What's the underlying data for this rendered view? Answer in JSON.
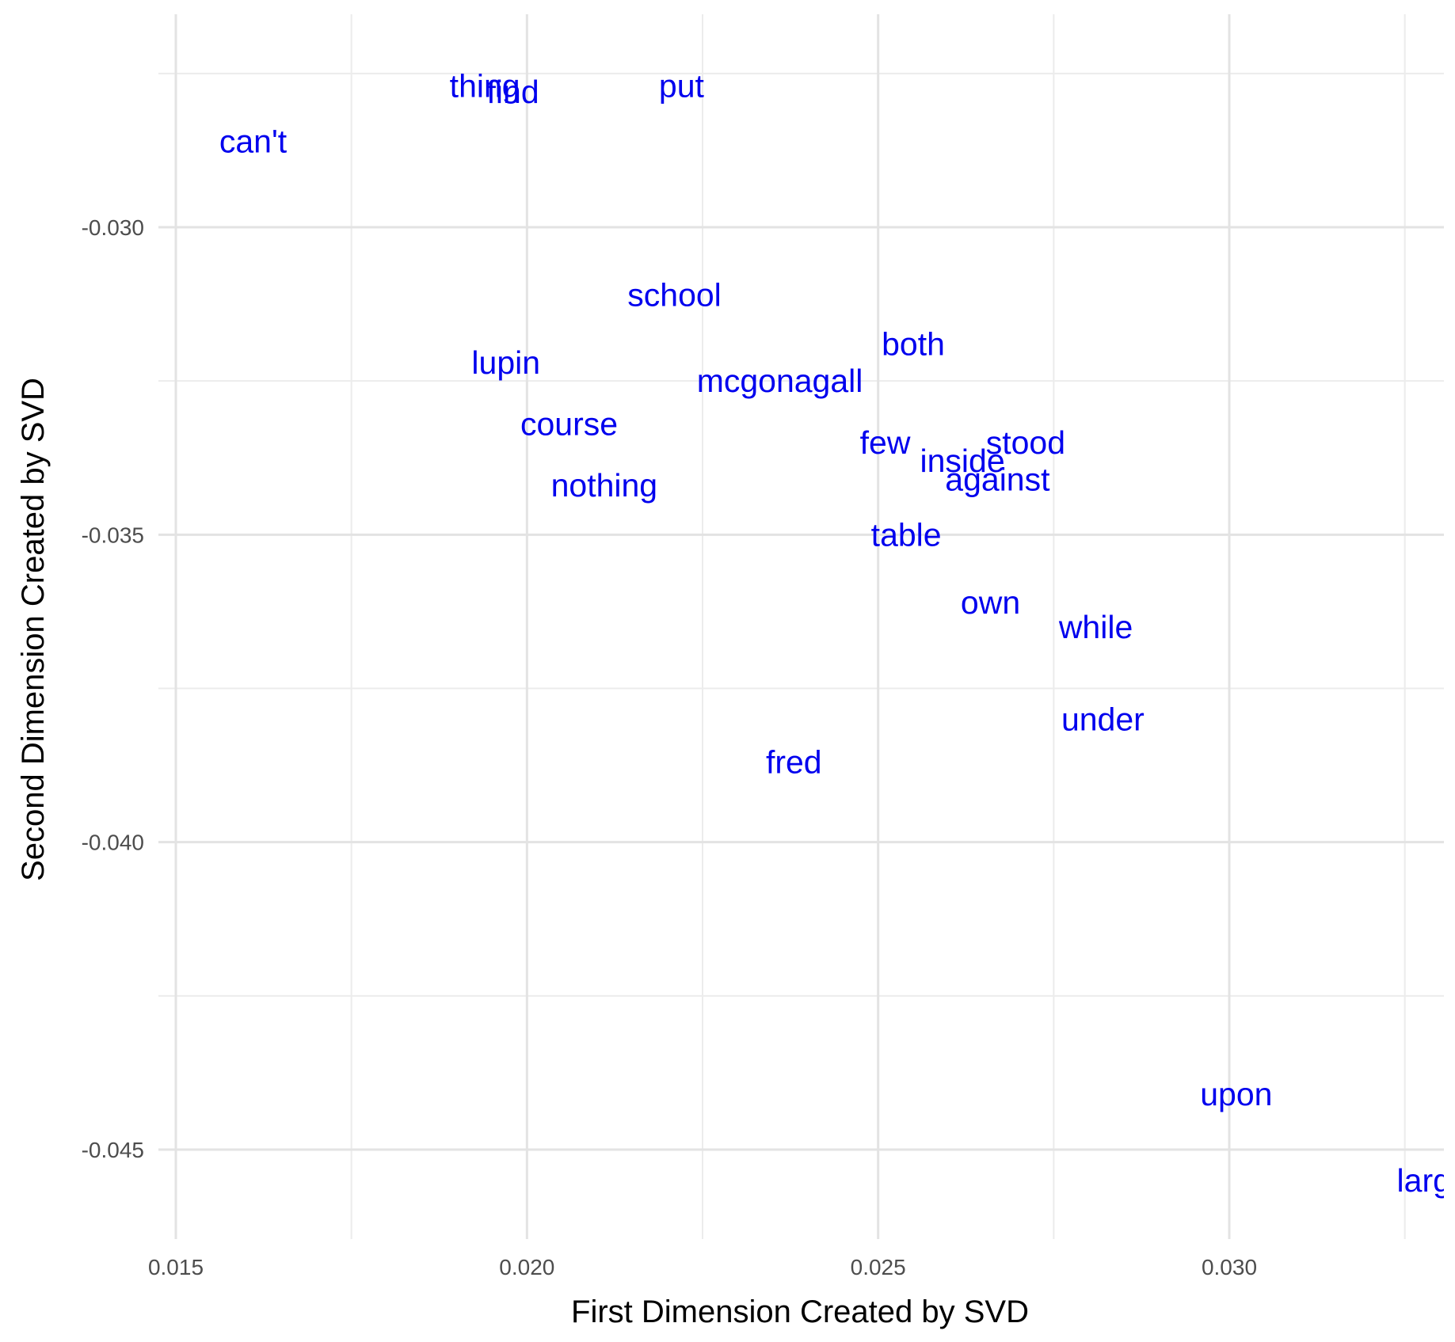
{
  "chart_data": {
    "type": "scatter",
    "title": "",
    "xlabel": "First Dimension Created by SVD",
    "ylabel": "Second Dimension Created by SVD",
    "xlim": [
      0.0146,
      0.0327
    ],
    "ylim": [
      -0.0464,
      -0.0259
    ],
    "x_ticks": [
      0.015,
      0.02,
      0.025,
      0.03
    ],
    "x_tick_labels": [
      "0.015",
      "0.020",
      "0.025",
      "0.030"
    ],
    "y_ticks": [
      -0.03,
      -0.035,
      -0.04,
      -0.045
    ],
    "y_tick_labels": [
      "-0.030",
      "-0.035",
      "-0.040",
      "-0.045"
    ],
    "grid": true,
    "label_color": "#0000ee",
    "points": [
      {
        "label": "thing",
        "x": 0.0194,
        "y": -0.0277
      },
      {
        "label": "find",
        "x": 0.0198,
        "y": -0.0278
      },
      {
        "label": "put",
        "x": 0.0222,
        "y": -0.0277
      },
      {
        "label": "can't",
        "x": 0.0161,
        "y": -0.0286
      },
      {
        "label": "school",
        "x": 0.0221,
        "y": -0.0311
      },
      {
        "label": "both",
        "x": 0.0255,
        "y": -0.0319
      },
      {
        "label": "lupin",
        "x": 0.0197,
        "y": -0.0322
      },
      {
        "label": "mcgonagall",
        "x": 0.0236,
        "y": -0.0325
      },
      {
        "label": "course",
        "x": 0.0206,
        "y": -0.0332
      },
      {
        "label": "few",
        "x": 0.0251,
        "y": -0.0335
      },
      {
        "label": "stood",
        "x": 0.0271,
        "y": -0.0335
      },
      {
        "label": "inside",
        "x": 0.0262,
        "y": -0.0338
      },
      {
        "label": "against",
        "x": 0.0267,
        "y": -0.0341
      },
      {
        "label": "nothing",
        "x": 0.0211,
        "y": -0.0342
      },
      {
        "label": "table",
        "x": 0.0254,
        "y": -0.035
      },
      {
        "label": "own",
        "x": 0.0266,
        "y": -0.0361
      },
      {
        "label": "while",
        "x": 0.0281,
        "y": -0.0365
      },
      {
        "label": "under",
        "x": 0.0282,
        "y": -0.038
      },
      {
        "label": "fred",
        "x": 0.0238,
        "y": -0.0387
      },
      {
        "label": "upon",
        "x": 0.0301,
        "y": -0.0441
      },
      {
        "label": "large",
        "x": 0.0329,
        "y": -0.0455
      }
    ]
  }
}
